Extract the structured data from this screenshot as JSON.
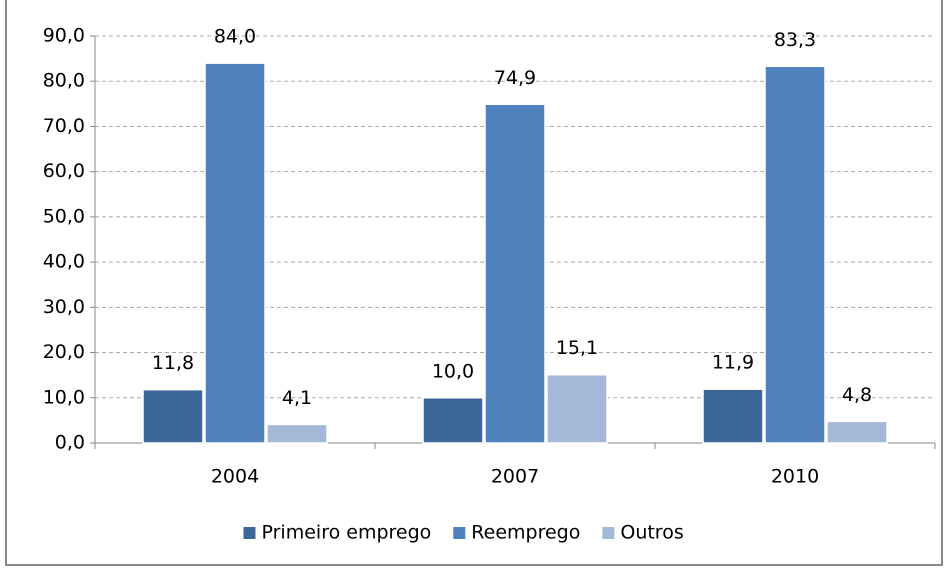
{
  "chart_data": {
    "type": "bar",
    "categories": [
      "2004",
      "2007",
      "2010"
    ],
    "series": [
      {
        "name": "Primeiro emprego",
        "color": "#3d6799",
        "values": [
          11.8,
          10.0,
          11.9
        ],
        "value_labels": [
          "11,8",
          "10,0",
          "11,9"
        ]
      },
      {
        "name": "Reemprego",
        "color": "#4f81bd",
        "values": [
          84.0,
          74.9,
          83.3
        ],
        "value_labels": [
          "84,0",
          "74,9",
          "83,3"
        ]
      },
      {
        "name": "Outros",
        "color": "#a6b8d8",
        "values": [
          4.1,
          15.1,
          4.8
        ],
        "value_labels": [
          "4,1",
          "15,1",
          "4,8"
        ]
      }
    ],
    "ylim": [
      0,
      90
    ],
    "yticks": [
      {
        "value": 0,
        "label": "0,0"
      },
      {
        "value": 10,
        "label": "10,0"
      },
      {
        "value": 20,
        "label": "20,0"
      },
      {
        "value": 30,
        "label": "30,0"
      },
      {
        "value": 40,
        "label": "40,0"
      },
      {
        "value": 50,
        "label": "50,0"
      },
      {
        "value": 60,
        "label": "60,0"
      },
      {
        "value": 70,
        "label": "70,0"
      },
      {
        "value": 80,
        "label": "80,0"
      },
      {
        "value": 90,
        "label": "90,0"
      }
    ],
    "grid": true,
    "legend": "bottom"
  }
}
